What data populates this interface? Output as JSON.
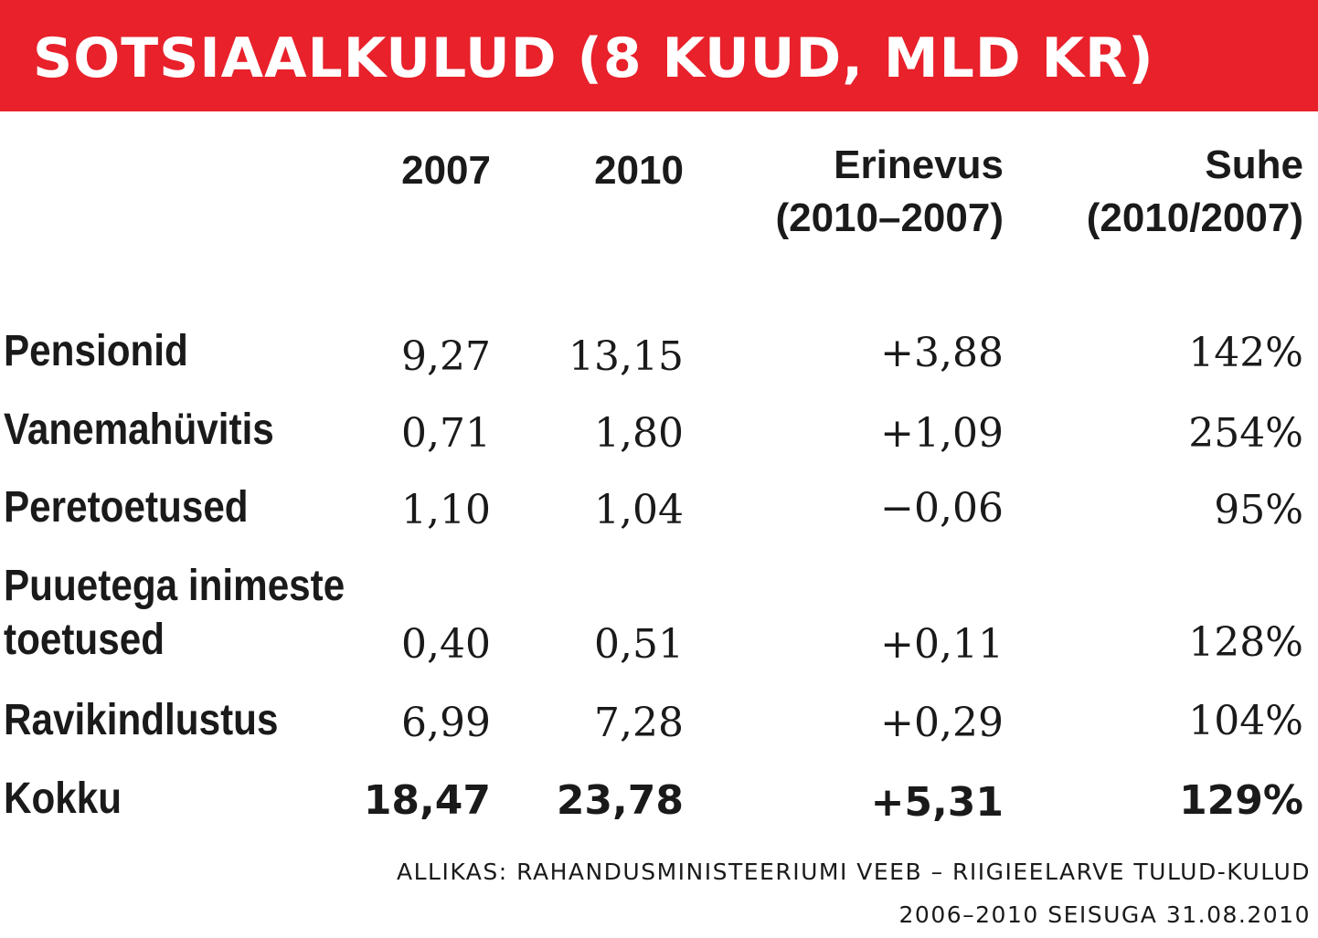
{
  "chart_data": {
    "type": "table",
    "title": "SOTSIAALKULUD (8 KUUD, MLD KR)",
    "columns": [
      {
        "line1": "2007",
        "line2": ""
      },
      {
        "line1": "2010",
        "line2": ""
      },
      {
        "line1": "Erinevus",
        "line2": "(2010–2007)"
      },
      {
        "line1": "Suhe",
        "line2": "(2010/2007)"
      }
    ],
    "rows": [
      {
        "label": "Pensionid",
        "values": [
          "9,27",
          "13,15",
          "+3,88",
          "142%"
        ]
      },
      {
        "label": "Vanemahüvitis",
        "values": [
          "0,71",
          "1,80",
          "+1,09",
          "254%"
        ]
      },
      {
        "label": "Peretoetused",
        "values": [
          "1,10",
          "1,04",
          "−0,06",
          "95%"
        ]
      },
      {
        "label_line1": "Puuetega inimeste",
        "label_line2": "toetused",
        "values": [
          "0,40",
          "0,51",
          "+0,11",
          "128%"
        ]
      },
      {
        "label": "Ravikindlustus",
        "values": [
          "6,99",
          "7,28",
          "+0,29",
          "104%"
        ]
      },
      {
        "label": "Kokku",
        "values": [
          "18,47",
          "23,78",
          "+5,31",
          "129%"
        ]
      }
    ],
    "source_line1": "ALLIKAS: RAHANDUSMINISTEERIUMI VEEB – RIIGIEELARVE TULUD-KULUD",
    "source_line2": "2006–2010 SEISUGA 31.08.2010"
  },
  "colors": {
    "title_bar": "#e8212b",
    "title_text": "#ffffff",
    "body_text": "#1a1a1a"
  }
}
